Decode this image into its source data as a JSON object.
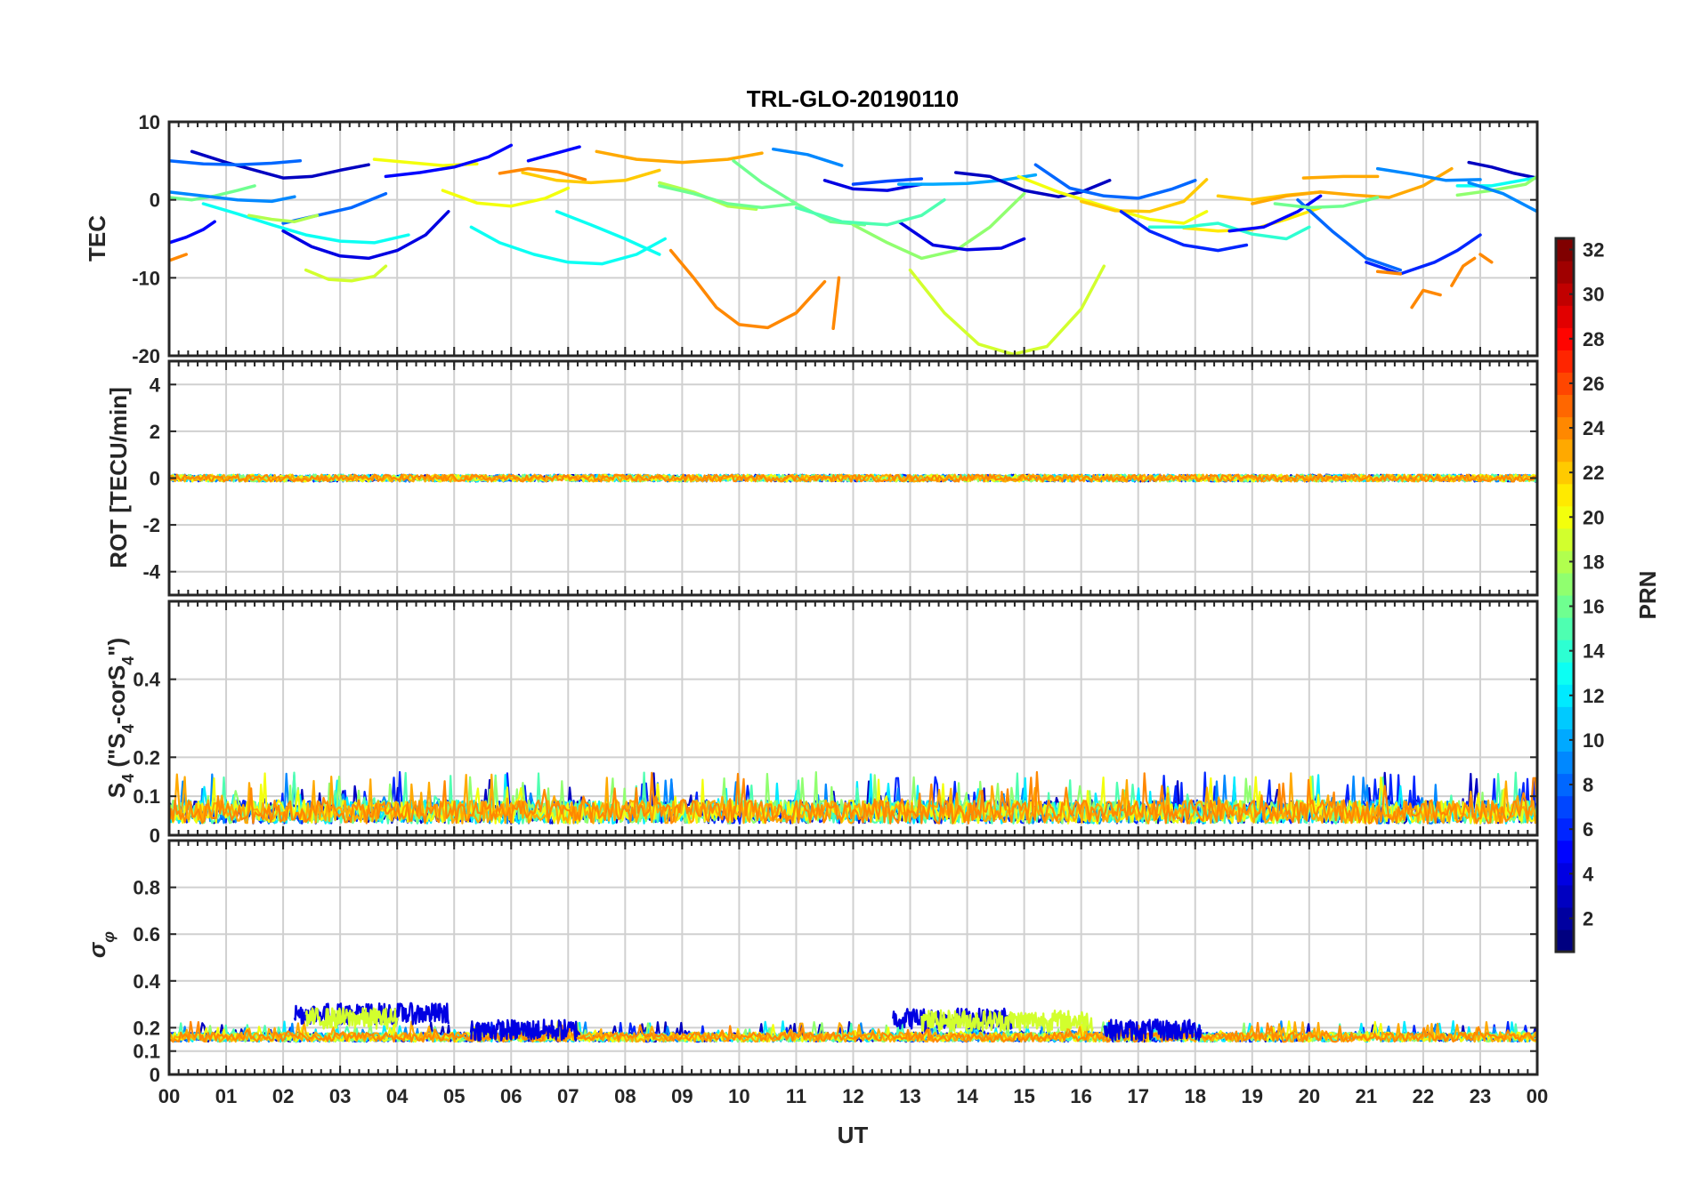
{
  "chart_data": {
    "type": "line",
    "title": "TRL-GLO-20190110",
    "xlabel": "UT",
    "x_ticks": [
      "00",
      "01",
      "02",
      "03",
      "04",
      "05",
      "06",
      "07",
      "08",
      "09",
      "10",
      "11",
      "12",
      "13",
      "14",
      "15",
      "16",
      "17",
      "18",
      "19",
      "20",
      "21",
      "22",
      "23",
      "00"
    ],
    "xlim_hours": [
      0,
      24
    ],
    "grid": true,
    "colorbar": {
      "label": "PRN",
      "colormap": "jet",
      "range": [
        1,
        32
      ],
      "tick_labels": [
        "2",
        "4",
        "6",
        "8",
        "10",
        "12",
        "14",
        "16",
        "18",
        "20",
        "22",
        "24",
        "26",
        "28",
        "30",
        "32"
      ]
    },
    "panels": [
      {
        "id": "tec",
        "ylabel": "TEC",
        "ylim": [
          -20,
          10
        ],
        "y_ticks": [
          10,
          0,
          -10,
          -20
        ],
        "y_tick_labels": [
          "10",
          "0",
          "-10",
          "-20"
        ],
        "series": [
          {
            "prn": 3,
            "x": [
              0.4,
              1.0,
              1.6,
              2.0,
              2.5,
              3.0,
              3.5
            ],
            "y": [
              6.2,
              4.8,
              3.6,
              2.8,
              3.0,
              3.8,
              4.5
            ]
          },
          {
            "prn": 8,
            "x": [
              0.0,
              0.6,
              1.2,
              1.8,
              2.3
            ],
            "y": [
              5.0,
              4.6,
              4.5,
              4.7,
              5.0
            ]
          },
          {
            "prn": 5,
            "x": [
              0.0,
              0.3,
              0.6,
              0.8
            ],
            "y": [
              -5.5,
              -4.8,
              -3.8,
              -2.8
            ]
          },
          {
            "prn": 24,
            "x": [
              0.0,
              0.3
            ],
            "y": [
              -7.8,
              -7.0
            ]
          },
          {
            "prn": 16,
            "x": [
              0.0,
              0.4,
              0.8,
              1.2,
              1.5
            ],
            "y": [
              0.3,
              0.0,
              0.5,
              1.2,
              1.8
            ]
          },
          {
            "prn": 9,
            "x": [
              0.0,
              0.6,
              1.2,
              1.8,
              2.2
            ],
            "y": [
              1.0,
              0.5,
              0.0,
              -0.2,
              0.4
            ]
          },
          {
            "prn": 13,
            "x": [
              0.6,
              1.2,
              1.8,
              2.4,
              3.0,
              3.6,
              4.2
            ],
            "y": [
              -0.5,
              -1.8,
              -3.2,
              -4.5,
              -5.3,
              -5.5,
              -4.5
            ]
          },
          {
            "prn": 4,
            "x": [
              2.0,
              2.5,
              3.0,
              3.5,
              4.0,
              4.5,
              4.9
            ],
            "y": [
              -4.0,
              -6.0,
              -7.2,
              -7.5,
              -6.5,
              -4.5,
              -1.5
            ]
          },
          {
            "prn": 8,
            "x": [
              2.0,
              2.6,
              3.2,
              3.8
            ],
            "y": [
              -3.0,
              -2.0,
              -1.0,
              0.8
            ]
          },
          {
            "prn": 18,
            "x": [
              1.4,
              1.8,
              2.2,
              2.6
            ],
            "y": [
              -2.0,
              -2.5,
              -2.8,
              -2.0
            ]
          },
          {
            "prn": 19,
            "x": [
              2.4,
              2.8,
              3.2,
              3.6,
              3.8
            ],
            "y": [
              -9.0,
              -10.2,
              -10.4,
              -9.8,
              -8.5
            ]
          },
          {
            "prn": 20,
            "x": [
              3.6,
              4.2,
              4.8,
              5.4
            ],
            "y": [
              5.2,
              4.8,
              4.4,
              4.6
            ]
          },
          {
            "prn": 5,
            "x": [
              3.8,
              4.4,
              5.0,
              5.6,
              6.0
            ],
            "y": [
              3.0,
              3.5,
              4.2,
              5.5,
              7.0
            ]
          },
          {
            "prn": 13,
            "x": [
              5.3,
              5.8,
              6.4,
              7.0,
              7.6,
              8.2,
              8.7
            ],
            "y": [
              -3.5,
              -5.5,
              -7.0,
              -8.0,
              -8.2,
              -7.0,
              -5.0
            ]
          },
          {
            "prn": 20,
            "x": [
              4.8,
              5.4,
              6.0,
              6.6,
              7.0
            ],
            "y": [
              1.2,
              -0.4,
              -0.8,
              0.2,
              1.5
            ]
          },
          {
            "prn": 24,
            "x": [
              5.8,
              6.3,
              6.8,
              7.3
            ],
            "y": [
              3.4,
              4.0,
              3.6,
              2.6
            ]
          },
          {
            "prn": 5,
            "x": [
              6.3,
              6.7,
              7.2
            ],
            "y": [
              5.0,
              5.8,
              6.8
            ]
          },
          {
            "prn": 22,
            "x": [
              6.2,
              6.8,
              7.4,
              8.0,
              8.6
            ],
            "y": [
              3.5,
              2.5,
              2.2,
              2.5,
              3.8
            ]
          },
          {
            "prn": 13,
            "x": [
              6.8,
              7.4,
              8.0,
              8.6
            ],
            "y": [
              -1.5,
              -3.2,
              -5.0,
              -7.0
            ]
          },
          {
            "prn": 23,
            "x": [
              7.5,
              8.2,
              9.0,
              9.8,
              10.4
            ],
            "y": [
              6.2,
              5.2,
              4.8,
              5.2,
              6.0
            ]
          },
          {
            "prn": 18,
            "x": [
              8.6,
              9.2,
              9.8,
              10.3
            ],
            "y": [
              2.2,
              1.0,
              -0.8,
              -1.2
            ]
          },
          {
            "prn": 16,
            "x": [
              8.6,
              9.2,
              9.8,
              10.4,
              11.0
            ],
            "y": [
              1.8,
              0.8,
              -0.5,
              -1.0,
              -0.5
            ]
          },
          {
            "prn": 24,
            "x": [
              8.8,
              9.2,
              9.6,
              10.0,
              10.5,
              11.0,
              11.5
            ],
            "y": [
              -6.5,
              -10.0,
              -13.8,
              -16.0,
              -16.4,
              -14.5,
              -10.5
            ]
          },
          {
            "prn": 24,
            "x": [
              11.65,
              11.75
            ],
            "y": [
              -16.5,
              -10.0
            ]
          },
          {
            "prn": 16,
            "x": [
              9.9,
              10.4,
              11.0,
              11.6,
              12.2
            ],
            "y": [
              5.0,
              2.2,
              -0.5,
              -2.8,
              -3.2
            ]
          },
          {
            "prn": 9,
            "x": [
              10.6,
              11.2,
              11.8
            ],
            "y": [
              6.5,
              5.8,
              4.4
            ]
          },
          {
            "prn": 7,
            "x": [
              12.0,
              12.6,
              13.2
            ],
            "y": [
              2.0,
              2.4,
              2.7
            ]
          },
          {
            "prn": 4,
            "x": [
              11.5,
              12.0,
              12.6,
              13.2
            ],
            "y": [
              2.5,
              1.4,
              1.2,
              2.0
            ]
          },
          {
            "prn": 17,
            "x": [
              12.0,
              12.6,
              13.2,
              13.8,
              14.4,
              15.0
            ],
            "y": [
              -3.2,
              -5.5,
              -7.5,
              -6.5,
              -3.5,
              0.8
            ]
          },
          {
            "prn": 4,
            "x": [
              12.8,
              13.4,
              14.0,
              14.6,
              15.0
            ],
            "y": [
              -2.8,
              -5.8,
              -6.4,
              -6.2,
              -5.0
            ]
          },
          {
            "prn": 15,
            "x": [
              11.0,
              11.8,
              12.6,
              13.2,
              13.6
            ],
            "y": [
              -1.0,
              -2.8,
              -3.2,
              -2.0,
              0.0
            ]
          },
          {
            "prn": 19,
            "x": [
              13.0,
              13.6,
              14.2,
              14.8,
              15.4,
              16.0,
              16.4
            ],
            "y": [
              -9.0,
              -14.5,
              -18.5,
              -19.8,
              -18.8,
              -14.0,
              -8.5
            ]
          },
          {
            "prn": 10,
            "x": [
              12.8,
              13.4,
              14.0,
              14.6,
              15.2
            ],
            "y": [
              2.0,
              2.0,
              2.1,
              2.5,
              3.2
            ]
          },
          {
            "prn": 3,
            "x": [
              13.8,
              14.4,
              15.0,
              15.6,
              16.0,
              16.5
            ],
            "y": [
              3.5,
              3.0,
              1.2,
              0.4,
              1.0,
              2.5
            ]
          },
          {
            "prn": 8,
            "x": [
              15.2,
              15.8,
              16.4,
              17.0,
              17.6,
              18.0
            ],
            "y": [
              4.5,
              1.5,
              0.5,
              0.2,
              1.4,
              2.5
            ]
          },
          {
            "prn": 20,
            "x": [
              14.9,
              15.6,
              16.4,
              17.2,
              17.8,
              18.2
            ],
            "y": [
              3.0,
              1.0,
              -0.8,
              -2.5,
              -3.0,
              -1.5
            ]
          },
          {
            "prn": 22,
            "x": [
              16.0,
              16.6,
              17.2,
              17.8,
              18.2
            ],
            "y": [
              -0.2,
              -1.4,
              -1.5,
              -0.2,
              2.6
            ]
          },
          {
            "prn": 6,
            "x": [
              16.7,
              17.2,
              17.8,
              18.4,
              18.9
            ],
            "y": [
              -1.5,
              -4.0,
              -5.8,
              -6.5,
              -5.8
            ]
          },
          {
            "prn": 21,
            "x": [
              17.8,
              18.4,
              19.0,
              19.6,
              20.2
            ],
            "y": [
              -3.6,
              -4.0,
              -3.8,
              -2.5,
              -1.0
            ]
          },
          {
            "prn": 14,
            "x": [
              17.2,
              17.8,
              18.4,
              19.0,
              19.6,
              20.0
            ],
            "y": [
              -3.5,
              -3.5,
              -3.0,
              -4.4,
              -5.0,
              -3.5
            ]
          },
          {
            "prn": 22,
            "x": [
              18.4,
              19.0,
              19.6,
              20.2
            ],
            "y": [
              0.5,
              0.0,
              0.6,
              1.0
            ]
          },
          {
            "prn": 5,
            "x": [
              18.6,
              19.2,
              19.8,
              20.2
            ],
            "y": [
              -4.0,
              -3.5,
              -1.5,
              0.5
            ]
          },
          {
            "prn": 8,
            "x": [
              19.8,
              20.4,
              21.0,
              21.6
            ],
            "y": [
              0.0,
              -4.0,
              -7.5,
              -9.0
            ]
          },
          {
            "prn": 23,
            "x": [
              19.0,
              19.6,
              20.2,
              20.8,
              21.4,
              22.0,
              22.5
            ],
            "y": [
              -0.5,
              0.5,
              1.0,
              0.6,
              0.3,
              1.8,
              4.0
            ]
          },
          {
            "prn": 16,
            "x": [
              19.4,
              20.0,
              20.6,
              21.2
            ],
            "y": [
              -0.5,
              -1.0,
              -0.8,
              0.3
            ]
          },
          {
            "prn": 23,
            "x": [
              19.9,
              20.6,
              21.2
            ],
            "y": [
              2.8,
              3.0,
              3.0
            ]
          },
          {
            "prn": 6,
            "x": [
              21.0,
              21.6,
              22.2,
              22.6,
              23.0
            ],
            "y": [
              -8.0,
              -9.5,
              -8.0,
              -6.5,
              -4.5
            ]
          },
          {
            "prn": 24,
            "x": [
              21.2,
              21.6
            ],
            "y": [
              -9.2,
              -9.5
            ]
          },
          {
            "prn": 24,
            "x": [
              21.8,
              22.0,
              22.3
            ],
            "y": [
              -13.8,
              -11.6,
              -12.2
            ]
          },
          {
            "prn": 24,
            "x": [
              22.5,
              22.7,
              22.9
            ],
            "y": [
              -11.0,
              -8.5,
              -7.5
            ]
          },
          {
            "prn": 24,
            "x": [
              23.0,
              23.2
            ],
            "y": [
              -7.0,
              -8.0
            ]
          },
          {
            "prn": 9,
            "x": [
              21.2,
              21.8,
              22.4,
              23.0
            ],
            "y": [
              4.0,
              3.3,
              2.5,
              2.6
            ]
          },
          {
            "prn": 3,
            "x": [
              22.8,
              23.2,
              23.6,
              24.0
            ],
            "y": [
              4.8,
              4.2,
              3.4,
              2.8
            ]
          },
          {
            "prn": 13,
            "x": [
              22.6,
              23.2,
              23.8,
              24.0
            ],
            "y": [
              1.8,
              1.8,
              2.6,
              2.8
            ]
          },
          {
            "prn": 17,
            "x": [
              22.6,
              23.2,
              23.8,
              24.0
            ],
            "y": [
              0.6,
              1.2,
              2.0,
              3.0
            ]
          },
          {
            "prn": 9,
            "x": [
              22.8,
              23.4,
              24.0
            ],
            "y": [
              2.2,
              0.8,
              -1.5
            ]
          }
        ]
      },
      {
        "id": "rot",
        "ylabel": "ROT [TECU/min]",
        "ylim": [
          -5,
          5
        ],
        "y_ticks": [
          4,
          2,
          0,
          -2,
          -4
        ],
        "y_tick_labels": [
          "4",
          "2",
          "0",
          "-2",
          "-4"
        ],
        "noise": {
          "baseline": 0.0,
          "amplitude": 0.15,
          "max": 0.3
        }
      },
      {
        "id": "s4",
        "ylabel": "S4 (\"S4-corS4\")",
        "ylim": [
          0,
          0.6
        ],
        "y_ticks": [
          0.4,
          0.2,
          0.1,
          0
        ],
        "y_tick_labels": [
          "0.4",
          "0.2",
          "0.1",
          "0"
        ],
        "noise": {
          "baseline": 0.03,
          "amplitude": 0.06,
          "max": 0.21
        }
      },
      {
        "id": "sigma_phi",
        "ylabel": "σφ",
        "ylim": [
          0,
          1
        ],
        "y_ticks": [
          0.8,
          0.6,
          0.4,
          0.2,
          0.1,
          0
        ],
        "y_tick_labels": [
          "0.8",
          "0.6",
          "0.4",
          "0.2",
          "0.1",
          "0"
        ],
        "noise": {
          "baseline": 0.14,
          "amplitude": 0.04,
          "max": 0.33
        },
        "elevated": [
          {
            "prn": 4,
            "x": [
              2.2,
              4.9
            ],
            "level": 0.26
          },
          {
            "prn": 19,
            "x": [
              2.4,
              4.0
            ],
            "level": 0.24
          },
          {
            "prn": 4,
            "x": [
              5.3,
              7.2
            ],
            "level": 0.19
          },
          {
            "prn": 4,
            "x": [
              12.7,
              14.8
            ],
            "level": 0.24
          },
          {
            "prn": 19,
            "x": [
              13.2,
              16.2
            ],
            "level": 0.23
          },
          {
            "prn": 4,
            "x": [
              16.4,
              18.1
            ],
            "level": 0.19
          }
        ]
      }
    ]
  }
}
